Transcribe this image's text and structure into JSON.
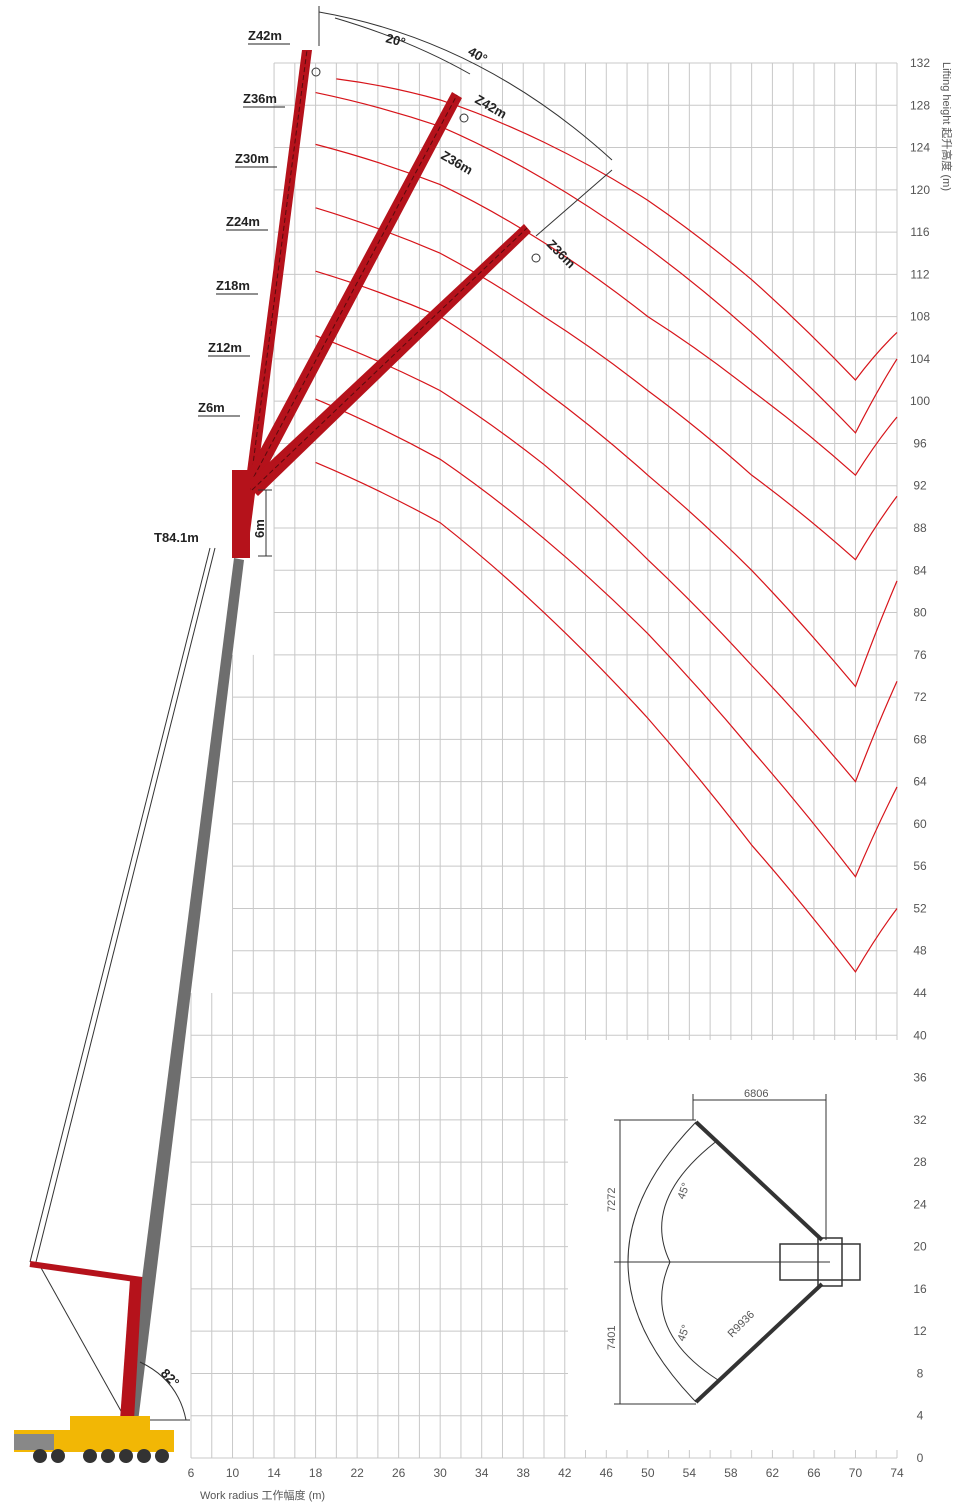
{
  "chart_data": {
    "type": "line",
    "title": "",
    "xlabel": "Work radius 工作幅度 (m)",
    "ylabel": "Lifting height 起升高度 (m)",
    "x_ticks": [
      6,
      10,
      14,
      18,
      22,
      26,
      30,
      34,
      38,
      42,
      46,
      50,
      54,
      58,
      62,
      66,
      70,
      74
    ],
    "y_ticks": [
      0,
      4,
      8,
      12,
      16,
      20,
      24,
      28,
      32,
      36,
      40,
      44,
      48,
      52,
      56,
      60,
      64,
      68,
      72,
      76,
      80,
      84,
      88,
      92,
      96,
      100,
      104,
      108,
      112,
      116,
      120,
      124,
      128,
      132
    ],
    "xlim": [
      3,
      74
    ],
    "ylim": [
      0,
      132
    ],
    "grid": true,
    "colors": {
      "curve": "#d7141a",
      "boom": "#b5121b",
      "grid": "#c8c8c8",
      "main_boom": "#6e6e6e",
      "carrier": "#f2b705"
    },
    "curves": [
      {
        "x": [
          20,
          30,
          40,
          50,
          60,
          70,
          74
        ],
        "y": [
          130.5,
          128.5,
          124.5,
          119,
          111.5,
          102,
          106.5
        ]
      },
      {
        "x": [
          18,
          30,
          40,
          50,
          60,
          70,
          74
        ],
        "y": [
          129.2,
          126,
          121,
          114.5,
          106.5,
          97,
          104
        ]
      },
      {
        "x": [
          18,
          30,
          40,
          50,
          60,
          70,
          74
        ],
        "y": [
          124.3,
          120.5,
          115,
          108,
          101,
          93,
          98.5
        ]
      },
      {
        "x": [
          18,
          30,
          40,
          50,
          60,
          70,
          74
        ],
        "y": [
          118.3,
          114,
          108,
          101,
          93,
          85,
          91
        ]
      },
      {
        "x": [
          18,
          30,
          40,
          50,
          60,
          70,
          74
        ],
        "y": [
          112.3,
          108,
          101,
          93,
          84,
          73,
          83
        ]
      },
      {
        "x": [
          18,
          30,
          40,
          50,
          60,
          70,
          74
        ],
        "y": [
          106.2,
          101,
          94,
          85,
          75,
          64,
          73.5
        ]
      },
      {
        "x": [
          18,
          30,
          40,
          50,
          60,
          70,
          74
        ],
        "y": [
          100.2,
          94.5,
          87,
          78,
          67,
          55,
          63.5
        ]
      },
      {
        "x": [
          18,
          30,
          40,
          50,
          60,
          70,
          74
        ],
        "y": [
          94.2,
          88.5,
          80,
          70,
          58,
          46,
          52
        ]
      }
    ]
  },
  "boom_labels": [
    "Z42m",
    "Z36m",
    "Z30m",
    "Z24m",
    "Z18m",
    "Z12m",
    "Z6m"
  ],
  "offset_labels": {
    "z42_offset": "Z42m",
    "z36_offset_a": "Z36m",
    "z36_offset_b": "Z36m"
  },
  "main_boom_label": "T84.1m",
  "jib_insert_label": "6m",
  "angles": {
    "offset_20": "20°",
    "offset_40": "40°",
    "luffing": "82°"
  },
  "outrigger": {
    "width": "6806",
    "front_half": "7272",
    "rear_half": "7401",
    "angle_upper": "45°",
    "angle_lower": "45°",
    "radius": "R9936"
  }
}
